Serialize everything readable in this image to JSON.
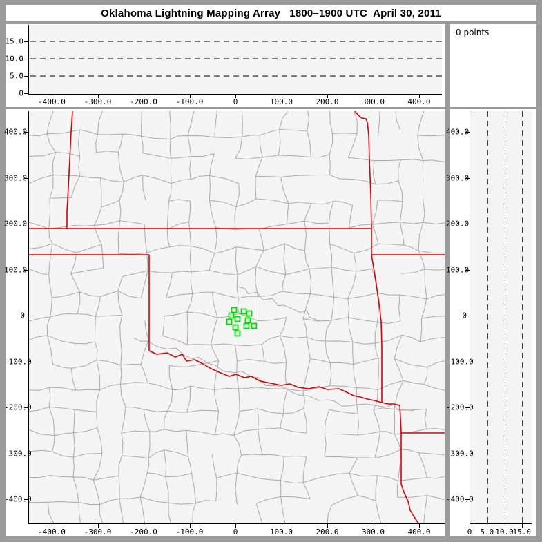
{
  "window": {
    "title": "Oklahoma Lightning Mapping Array   1800–1900 UTC  April 30, 2011"
  },
  "histogram_panel": {
    "points_label": "0 points"
  },
  "colors": {
    "frame_gray": "#9b9b9b",
    "plot_background": "#f4f4f4",
    "state_border_red": "#dd0000",
    "county_line_gray": "#a9a9a9",
    "station_green": "#00dd00",
    "axis_black": "#000000"
  },
  "chart_data": [
    {
      "id": "altitude-vs-eastwest",
      "type": "scatter",
      "position": "top-panel",
      "description": "Lightning source altitude (km) vs east-west distance (km); no sources plotted",
      "x_tick_values": [
        -400,
        -300,
        -200,
        -100,
        0,
        100,
        200,
        300,
        400
      ],
      "x_tick_labels": [
        "-400.0",
        "-300.0",
        "-200.0",
        "-100.0",
        "0",
        "100.0",
        "200.0",
        "300.0",
        "400.0"
      ],
      "y_tick_values": [
        0,
        5,
        10,
        15
      ],
      "y_tick_labels": [
        "0",
        "5.0",
        "10.0",
        "15.0"
      ],
      "xlim": [
        -455,
        455
      ],
      "ylim": [
        0,
        20
      ],
      "dashed_gridlines_altitude_km": [
        5,
        10,
        15
      ],
      "grid_style": "black dashed horizontal lines",
      "points": [],
      "points_count": 0
    },
    {
      "id": "plan-view-map",
      "type": "scatter",
      "position": "main-panel",
      "description": "Plan view map: north-south vs east-west distance (km) with state borders (red), county lines (gray) and OK-LMA station markers (green squares); no lightning sources plotted",
      "x_tick_values": [
        -400,
        -300,
        -200,
        -100,
        0,
        100,
        200,
        300,
        400
      ],
      "x_tick_labels": [
        "-400.0",
        "-300.0",
        "-200.0",
        "-100.0",
        "0",
        "100.0",
        "200.0",
        "300.0",
        "400.0"
      ],
      "y_tick_values": [
        400,
        300,
        200,
        100,
        0,
        -100,
        -200,
        -300,
        -400
      ],
      "y_tick_labels": [
        "400.0",
        "300.0",
        "200.0",
        "100.0",
        "0",
        "-100.0",
        "-200.0",
        "-300.0",
        "-400.0"
      ],
      "xlim": [
        -455,
        455
      ],
      "ylim": [
        -455,
        455
      ],
      "lma_stations_km": [
        [
          -4.5,
          12.0
        ],
        [
          16.5,
          9.0
        ],
        [
          28.5,
          4.5
        ],
        [
          -10.5,
          0.0
        ],
        [
          -15.0,
          -13.5
        ],
        [
          3.0,
          -7.5
        ],
        [
          25.5,
          -10.5
        ],
        [
          22.5,
          -22.5
        ],
        [
          39.0,
          -22.5
        ],
        [
          -1.5,
          -25.5
        ],
        [
          3.0,
          -39.0
        ]
      ],
      "map_features": {
        "state_borders": "Oklahoma, Kansas, Texas panhandle, Missouri, Arkansas, Louisiana borders in red",
        "county_lines": "gray county boundary mesh",
        "rivers": "gray wiggly river traces"
      },
      "points": [],
      "points_count": 0
    },
    {
      "id": "altitude-vs-northsouth",
      "type": "scatter",
      "position": "right-panel",
      "description": "North-south distance (km) vs lightning source altitude (km); no sources plotted",
      "x_tick_values": [
        0,
        5,
        10,
        15
      ],
      "x_tick_labels": [
        "0",
        "5.0",
        "10.0",
        "15.0"
      ],
      "y_tick_values": [
        400,
        300,
        200,
        100,
        0,
        -100,
        -200,
        -300,
        -400
      ],
      "y_tick_labels": [
        "400.0",
        "300.0",
        "200.0",
        "100.0",
        "0",
        "-100.0",
        "-200.0",
        "-300.0",
        "-400.0"
      ],
      "xlim": [
        0,
        20
      ],
      "ylim": [
        -455,
        455
      ],
      "dashed_gridlines_altitude_km": [
        5,
        10,
        15
      ],
      "grid_style": "black dashed vertical lines",
      "points": [],
      "points_count": 0
    }
  ]
}
